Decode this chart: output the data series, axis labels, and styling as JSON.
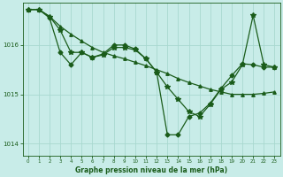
{
  "bg_color": "#c8ece8",
  "grid_color": "#a8d8d0",
  "line_color": "#1a5c1a",
  "xlabel": "Graphe pression niveau de la mer (hPa)",
  "ylim": [
    1013.75,
    1016.85
  ],
  "xlim": [
    -0.5,
    23.5
  ],
  "yticks": [
    1014,
    1015,
    1016
  ],
  "xticks": [
    0,
    1,
    2,
    3,
    4,
    5,
    6,
    7,
    8,
    9,
    10,
    11,
    12,
    13,
    14,
    15,
    16,
    17,
    18,
    19,
    20,
    21,
    22,
    23
  ],
  "series1_x": [
    0,
    1,
    2,
    3,
    4,
    5,
    6,
    7,
    8,
    9,
    10,
    11,
    12,
    13,
    14,
    15,
    16,
    17,
    18,
    19,
    20,
    21,
    22,
    23
  ],
  "series1_y": [
    1016.72,
    1016.72,
    1016.58,
    1016.38,
    1016.22,
    1016.08,
    1015.95,
    1015.85,
    1015.78,
    1015.72,
    1015.65,
    1015.58,
    1015.5,
    1015.42,
    1015.32,
    1015.24,
    1015.17,
    1015.1,
    1015.05,
    1015.0,
    1015.0,
    1015.0,
    1015.02,
    1015.05
  ],
  "series2_x": [
    0,
    1,
    2,
    3,
    4,
    5,
    6,
    7,
    8,
    9,
    10,
    11,
    12,
    13,
    14,
    15,
    16,
    17,
    18,
    19,
    20,
    21,
    22,
    23
  ],
  "series2_y": [
    1016.72,
    1016.72,
    1016.58,
    1016.3,
    1015.85,
    1015.85,
    1015.75,
    1015.8,
    1015.95,
    1015.95,
    1015.9,
    1015.72,
    1015.45,
    1015.15,
    1014.9,
    1014.65,
    1014.55,
    1014.8,
    1015.1,
    1015.25,
    1015.6,
    1016.6,
    1015.6,
    1015.55
  ],
  "series3_x": [
    0,
    1,
    2,
    3,
    4,
    5,
    6,
    7,
    8,
    9,
    10,
    11,
    12,
    13,
    14,
    15,
    16,
    17,
    18,
    19,
    20,
    21,
    22,
    23
  ],
  "series3_y": [
    1016.72,
    1016.72,
    1016.55,
    1015.85,
    1015.6,
    1015.85,
    1015.75,
    1015.82,
    1016.0,
    1016.0,
    1015.92,
    1015.72,
    1015.45,
    1014.18,
    1014.18,
    1014.55,
    1014.62,
    1014.82,
    1015.12,
    1015.38,
    1015.62,
    1015.6,
    1015.55,
    1015.55
  ],
  "marker_size": 2.5,
  "linewidth": 0.9
}
